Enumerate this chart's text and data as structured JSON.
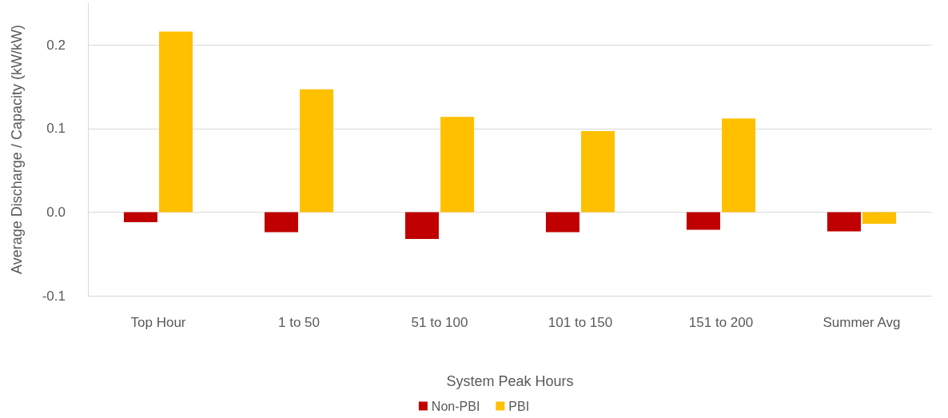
{
  "chart_data": {
    "type": "bar",
    "xlabel": "System Peak Hours",
    "ylabel": "Average Discharge / Capacity (kW/kW)",
    "categories": [
      "Top Hour",
      "1 to 50",
      "51 to 100",
      "101 to 150",
      "151 to 200",
      "Summer Avg"
    ],
    "series": [
      {
        "name": "Non-PBI",
        "color": "#c00000",
        "values": [
          -0.012,
          -0.024,
          -0.032,
          -0.024,
          -0.021,
          -0.023
        ]
      },
      {
        "name": "PBI",
        "color": "#ffc000",
        "values": [
          0.216,
          0.147,
          0.114,
          0.097,
          0.112,
          -0.014
        ]
      }
    ],
    "ylim": [
      -0.1,
      0.25
    ],
    "yticks": [
      -0.1,
      {
        "value": 0,
        "label": "0.0"
      },
      0.1,
      0.2
    ],
    "grid": "y",
    "legend": "bottom"
  }
}
